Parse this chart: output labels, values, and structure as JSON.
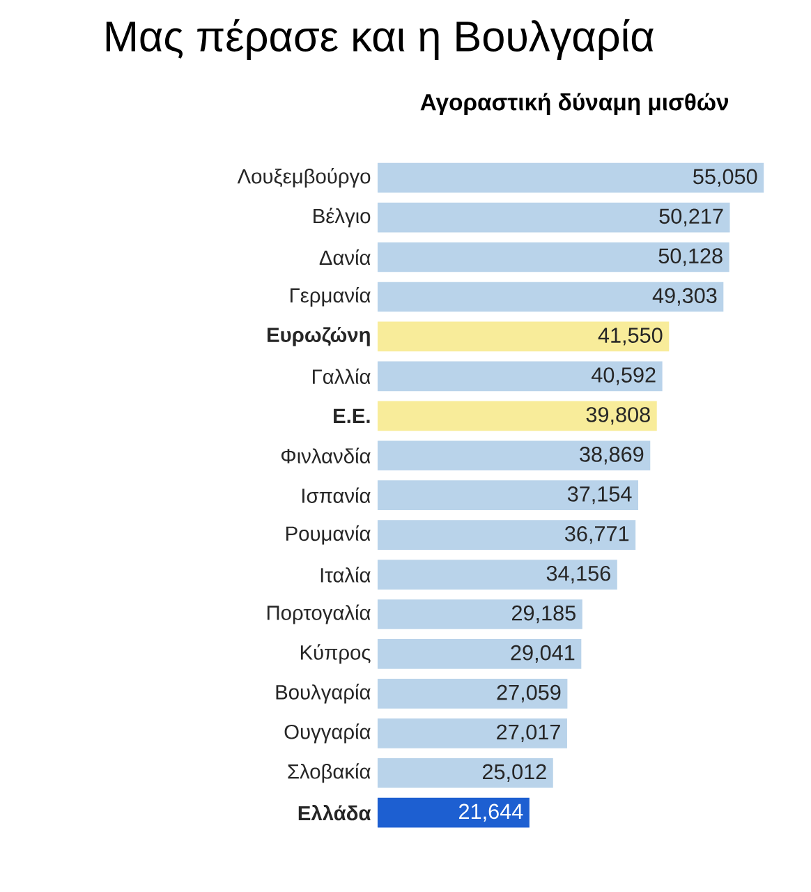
{
  "chart_data": {
    "type": "bar",
    "orientation": "horizontal",
    "title": "Μας πέρασε και η Βουλγαρία",
    "subtitle": "Αγοραστική δύναμη μισθών",
    "categories": [
      "Λουξεμβούργο",
      "Βέλγιο",
      "Δανία",
      "Γερμανία",
      "Ευρωζώνη",
      "Γαλλία",
      "Ε.Ε.",
      "Φινλανδία",
      "Ισπανία",
      "Ρουμανία",
      "Ιταλία",
      "Πορτογαλία",
      "Κύπρος",
      "Βουλγαρία",
      "Ουγγαρία",
      "Σλοβακία",
      "Ελλάδα"
    ],
    "values": [
      55050,
      50217,
      50128,
      49303,
      41550,
      40592,
      39808,
      38869,
      37154,
      36771,
      34156,
      29185,
      29041,
      27059,
      27017,
      25012,
      21644
    ],
    "value_labels": [
      "55,050",
      "50,217",
      "50,128",
      "49,303",
      "41,550",
      "40,592",
      "39,808",
      "38,869",
      "37,154",
      "36,771",
      "34,156",
      "29,185",
      "29,041",
      "27,059",
      "27,017",
      "25,012",
      "21,644"
    ],
    "colors": [
      "#b9d3ea",
      "#b9d3ea",
      "#b9d3ea",
      "#b9d3ea",
      "#f8ec9a",
      "#b9d3ea",
      "#f8ec9a",
      "#b9d3ea",
      "#b9d3ea",
      "#b9d3ea",
      "#b9d3ea",
      "#b9d3ea",
      "#b9d3ea",
      "#b9d3ea",
      "#b9d3ea",
      "#b9d3ea",
      "#1d5fd1"
    ]
  }
}
